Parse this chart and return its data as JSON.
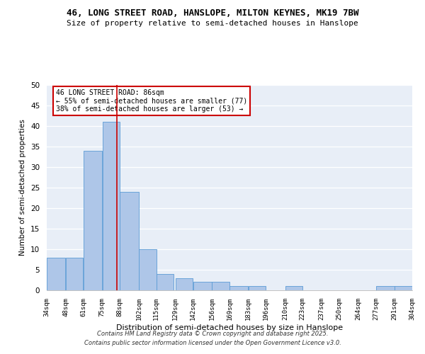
{
  "title1": "46, LONG STREET ROAD, HANSLOPE, MILTON KEYNES, MK19 7BW",
  "title2": "Size of property relative to semi-detached houses in Hanslope",
  "xlabel": "Distribution of semi-detached houses by size in Hanslope",
  "ylabel": "Number of semi-detached properties",
  "bar_left_edges": [
    34,
    48,
    61,
    75,
    88,
    102,
    115,
    129,
    142,
    156,
    169,
    183,
    196,
    210,
    223,
    237,
    250,
    264,
    277,
    291
  ],
  "bar_widths": [
    14,
    13,
    14,
    13,
    14,
    13,
    13,
    13,
    14,
    13,
    14,
    13,
    14,
    13,
    14,
    13,
    14,
    13,
    14,
    13
  ],
  "bar_heights": [
    8,
    8,
    34,
    41,
    24,
    10,
    4,
    3,
    2,
    2,
    1,
    1,
    0,
    1,
    0,
    0,
    0,
    0,
    1,
    1
  ],
  "tick_labels": [
    "34sqm",
    "48sqm",
    "61sqm",
    "75sqm",
    "88sqm",
    "102sqm",
    "115sqm",
    "129sqm",
    "142sqm",
    "156sqm",
    "169sqm",
    "183sqm",
    "196sqm",
    "210sqm",
    "223sqm",
    "237sqm",
    "250sqm",
    "264sqm",
    "277sqm",
    "291sqm",
    "304sqm"
  ],
  "tick_positions": [
    34,
    48,
    61,
    75,
    88,
    102,
    115,
    129,
    142,
    156,
    169,
    183,
    196,
    210,
    223,
    237,
    250,
    264,
    277,
    291,
    304
  ],
  "bar_color": "#aec6e8",
  "bar_edge_color": "#5b9bd5",
  "vline_x": 86,
  "vline_color": "#cc0000",
  "annotation_title": "46 LONG STREET ROAD: 86sqm",
  "annotation_line1": "← 55% of semi-detached houses are smaller (77)",
  "annotation_line2": "38% of semi-detached houses are larger (53) →",
  "annotation_box_color": "#cc0000",
  "ylim": [
    0,
    50
  ],
  "yticks": [
    0,
    5,
    10,
    15,
    20,
    25,
    30,
    35,
    40,
    45,
    50
  ],
  "bg_color": "#e8eef7",
  "footer1": "Contains HM Land Registry data © Crown copyright and database right 2025.",
  "footer2": "Contains public sector information licensed under the Open Government Licence v3.0."
}
